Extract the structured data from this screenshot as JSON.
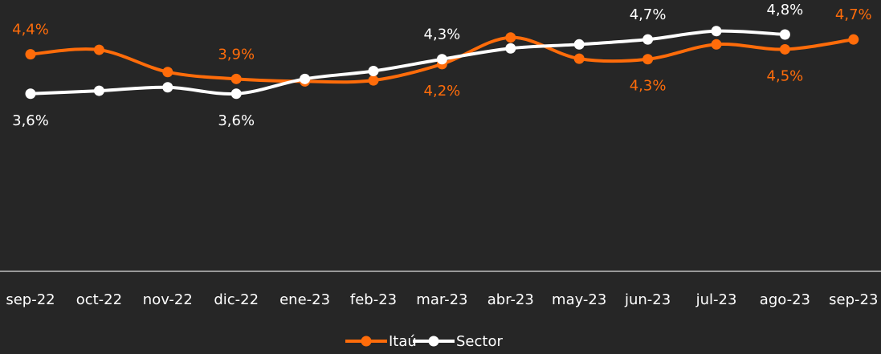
{
  "chart_data": {
    "type": "line",
    "categories": [
      "sep-22",
      "oct-22",
      "nov-22",
      "dic-22",
      "ene-23",
      "feb-23",
      "mar-23",
      "abr-23",
      "may-23",
      "jun-23",
      "jul-23",
      "ago-23",
      "sep-23"
    ],
    "ylim": [
      0,
      5.5
    ],
    "series": [
      {
        "name": "Itaú",
        "color": "#ff6c0a",
        "values": [
          4.4,
          4.49,
          4.04,
          3.9,
          3.85,
          3.87,
          4.2,
          4.74,
          4.31,
          4.3,
          4.6,
          4.5,
          4.7
        ],
        "value_labels": [
          "4,4%",
          null,
          null,
          "3,9%",
          null,
          null,
          "4,2%",
          null,
          null,
          "4,3%",
          null,
          "4,5%",
          "4,7%"
        ]
      },
      {
        "name": "Sector",
        "color": "#ffffff",
        "values": [
          3.6,
          3.66,
          3.73,
          3.6,
          3.9,
          4.06,
          4.3,
          4.52,
          4.6,
          4.7,
          4.87,
          4.8,
          null
        ],
        "value_labels": [
          "3,6%",
          null,
          null,
          "3,6%",
          null,
          null,
          "4,3%",
          null,
          null,
          "4,7%",
          null,
          "4,8%",
          null
        ]
      }
    ]
  }
}
